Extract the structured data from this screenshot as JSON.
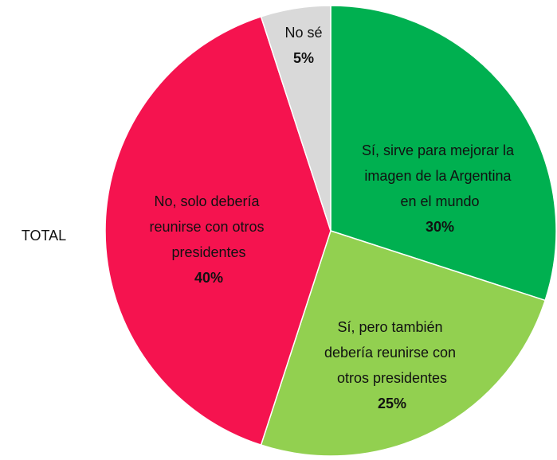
{
  "chart_data": {
    "type": "pie",
    "title": "TOTAL",
    "categories": [
      "Sí, sirve para mejorar la imagen de la Argentina en el mundo",
      "Sí, pero también debería reunirse con otros presidentes",
      "No, solo debería reunirse con otros presidentes",
      "No sé"
    ],
    "values": [
      30,
      25,
      40,
      5
    ],
    "value_labels": [
      "30%",
      "25%",
      "40%",
      "5%"
    ],
    "colors": [
      "#00b050",
      "#92d050",
      "#f5134f",
      "#d9d9d9"
    ]
  }
}
